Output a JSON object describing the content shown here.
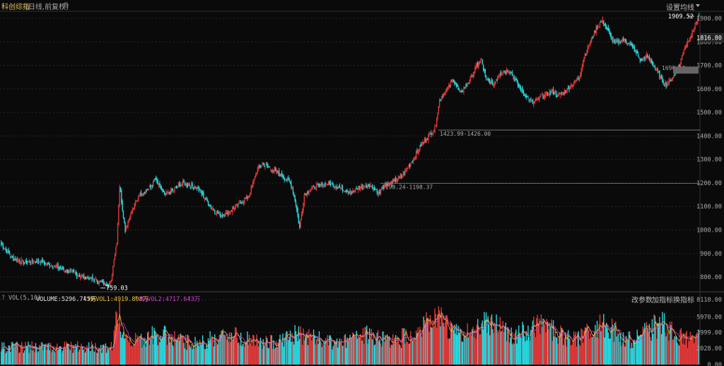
{
  "header": {
    "title": "科创综指",
    "mode": "(日线,前复权)",
    "settings_label": "设置均线"
  },
  "volume_header": {
    "label": "VOL(5,10)",
    "volume_text": "VOLUME:5296.745万",
    "mavol1_text": "MAVOL1:4919.808万",
    "mavol2_text": "MAVOL2:4717.643万"
  },
  "toolbar": {
    "change_params": "改参数",
    "add_indicator": "加指标",
    "switch_indicator": "换指标"
  },
  "price_axis": {
    "ticks": [
      "1900.00",
      "1800.00",
      "1700.00",
      "1600.00",
      "1500.00",
      "1400.00",
      "1300.00",
      "1200.00",
      "1100.00",
      "1000.00",
      "900.00",
      "800.00"
    ],
    "tick_values": [
      1900,
      1800,
      1700,
      1600,
      1500,
      1400,
      1300,
      1200,
      1100,
      1000,
      900,
      800
    ],
    "current_price": "1816.80",
    "highlight_price": "1680.00"
  },
  "volume_axis": {
    "ticks": [
      "8110.00",
      "5970.00",
      "3999.00",
      "2028.00",
      "0.00"
    ],
    "tick_values": [
      8110,
      5970,
      3999,
      2028,
      0
    ]
  },
  "annotations": {
    "high": "1909.52",
    "low": "759.03",
    "level1": "1423.99-1426.00",
    "level2": "1198.24-1198.37",
    "level3": "1690.50"
  },
  "colors": {
    "up": "#e03838",
    "down": "#26d9e0",
    "mavol1": "#f0c040",
    "mavol2": "#d040d0",
    "grid": "#262626",
    "title": "#e8c060"
  },
  "chart_data": {
    "type": "candlestick",
    "y_range": [
      740,
      1930
    ],
    "volume_range": [
      0,
      8110
    ],
    "keyframes": [
      [
        0,
        940
      ],
      [
        12,
        880
      ],
      [
        25,
        862
      ],
      [
        40,
        868
      ],
      [
        55,
        850
      ],
      [
        75,
        820
      ],
      [
        88,
        800
      ],
      [
        100,
        790
      ],
      [
        110,
        772
      ],
      [
        115,
        770
      ],
      [
        118,
        780
      ],
      [
        121,
        880
      ],
      [
        124,
        950
      ],
      [
        127,
        1190
      ],
      [
        130,
        1090
      ],
      [
        133,
        1000
      ],
      [
        138,
        1060
      ],
      [
        148,
        1150
      ],
      [
        160,
        1180
      ],
      [
        165,
        1215
      ],
      [
        175,
        1150
      ],
      [
        185,
        1170
      ],
      [
        195,
        1200
      ],
      [
        210,
        1180
      ],
      [
        225,
        1100
      ],
      [
        235,
        1060
      ],
      [
        245,
        1080
      ],
      [
        265,
        1140
      ],
      [
        275,
        1260
      ],
      [
        280,
        1280
      ],
      [
        290,
        1260
      ],
      [
        305,
        1220
      ],
      [
        310,
        1200
      ],
      [
        312,
        1180
      ],
      [
        316,
        1110
      ],
      [
        320,
        1010
      ],
      [
        325,
        1150
      ],
      [
        335,
        1180
      ],
      [
        350,
        1200
      ],
      [
        360,
        1185
      ],
      [
        375,
        1160
      ],
      [
        385,
        1180
      ],
      [
        395,
        1190
      ],
      [
        405,
        1160
      ],
      [
        410,
        1190
      ],
      [
        420,
        1205
      ],
      [
        430,
        1230
      ],
      [
        440,
        1290
      ],
      [
        450,
        1360
      ],
      [
        458,
        1400
      ],
      [
        465,
        1430
      ],
      [
        470,
        1550
      ],
      [
        478,
        1600
      ],
      [
        485,
        1640
      ],
      [
        492,
        1580
      ],
      [
        500,
        1620
      ],
      [
        505,
        1660
      ],
      [
        510,
        1700
      ],
      [
        515,
        1720
      ],
      [
        520,
        1640
      ],
      [
        528,
        1620
      ],
      [
        535,
        1670
      ],
      [
        545,
        1680
      ],
      [
        555,
        1610
      ],
      [
        565,
        1560
      ],
      [
        570,
        1540
      ],
      [
        580,
        1570
      ],
      [
        590,
        1590
      ],
      [
        598,
        1570
      ],
      [
        608,
        1600
      ],
      [
        615,
        1630
      ],
      [
        620,
        1650
      ],
      [
        625,
        1740
      ],
      [
        632,
        1800
      ],
      [
        638,
        1860
      ],
      [
        645,
        1890
      ],
      [
        650,
        1850
      ],
      [
        658,
        1790
      ],
      [
        665,
        1810
      ],
      [
        672,
        1800
      ],
      [
        680,
        1760
      ],
      [
        686,
        1720
      ],
      [
        692,
        1740
      ],
      [
        698,
        1710
      ],
      [
        703,
        1680
      ],
      [
        708,
        1640
      ],
      [
        713,
        1620
      ],
      [
        718,
        1640
      ],
      [
        722,
        1660
      ],
      [
        727,
        1700
      ],
      [
        733,
        1780
      ],
      [
        740,
        1830
      ],
      [
        745,
        1880
      ],
      [
        748,
        1909
      ]
    ]
  }
}
